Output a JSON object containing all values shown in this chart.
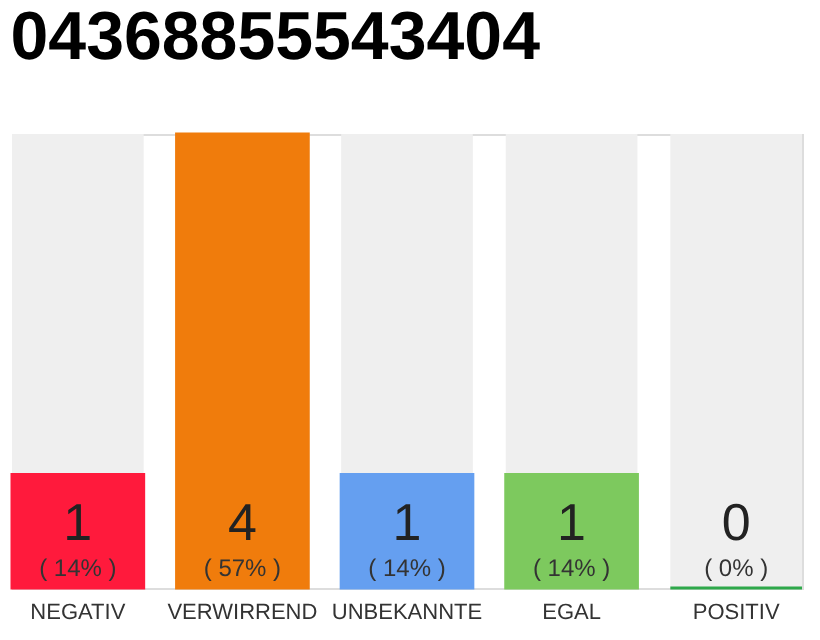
{
  "chart_data": {
    "type": "bar",
    "title": "04368855543404",
    "categories": [
      "NEGATIV",
      "VERWIRREND",
      "UNBEKANNTE",
      "EGAL",
      "POSITIV"
    ],
    "series": [
      {
        "colors": [
          "#ff1a3c",
          "#f07c0c",
          "#659ff0",
          "#7dc95e",
          "#2ea84a"
        ],
        "values": [
          1,
          4,
          1,
          1,
          0
        ],
        "value_labels": [
          "1",
          "4",
          "1",
          "1",
          "0"
        ]
      }
    ],
    "ylim": [
      0,
      4
    ],
    "annotations": [
      "( 14% )",
      "( 57% )",
      "( 14% )",
      "( 14% )",
      "( 0% )"
    ]
  }
}
